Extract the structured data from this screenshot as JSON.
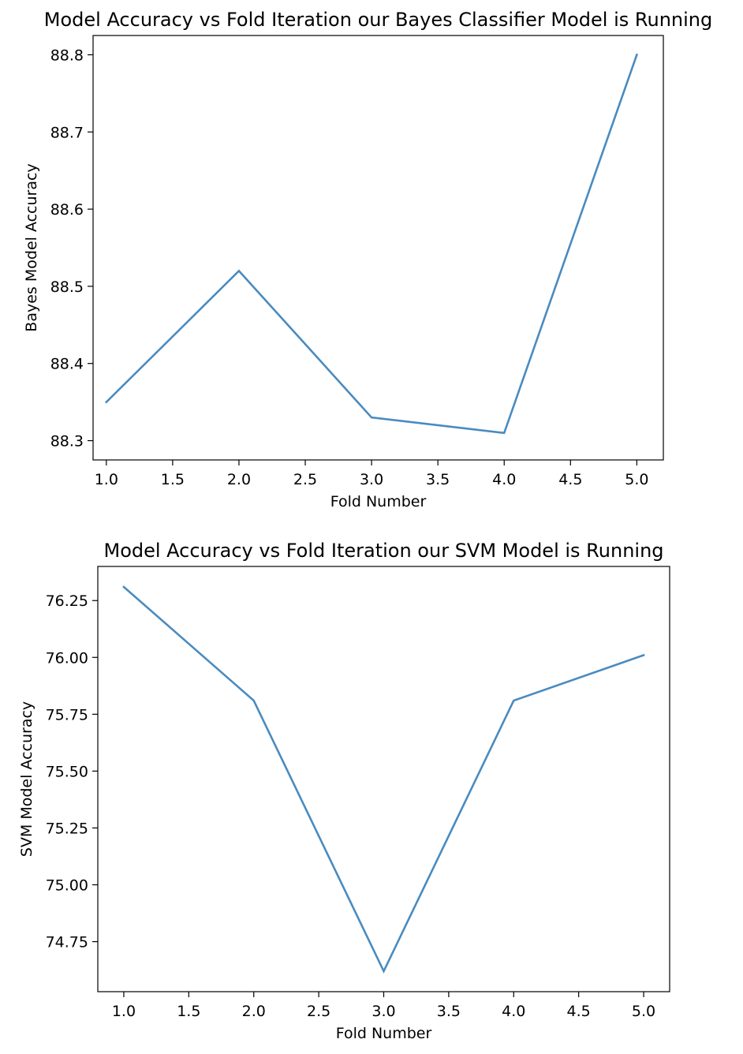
{
  "chart_data": [
    {
      "type": "line",
      "title": "Model Accuracy vs Fold Iteration our Bayes Classifier Model is Running",
      "xlabel": "Fold Number",
      "ylabel": "Bayes Model Accuracy",
      "x": [
        1,
        2,
        3,
        4,
        5
      ],
      "series": [
        {
          "values": [
            88.35,
            88.52,
            88.33,
            88.31,
            88.8
          ]
        }
      ],
      "xlim": [
        0.9,
        5.2
      ],
      "ylim": [
        88.275,
        88.825
      ],
      "x_ticks": [
        "1.0",
        "1.5",
        "2.0",
        "2.5",
        "3.0",
        "3.5",
        "4.0",
        "4.5",
        "5.0"
      ],
      "y_ticks": [
        "88.3",
        "88.4",
        "88.5",
        "88.6",
        "88.7",
        "88.8"
      ],
      "grid": false,
      "line_color": "#4a8bbf"
    },
    {
      "type": "line",
      "title": "Model Accuracy vs Fold Iteration our SVM Model is Running",
      "xlabel": "Fold Number",
      "ylabel": "SVM Model Accuracy",
      "x": [
        1,
        2,
        3,
        4,
        5
      ],
      "series": [
        {
          "values": [
            76.31,
            75.81,
            74.62,
            75.81,
            76.01
          ]
        }
      ],
      "xlim": [
        0.8,
        5.2
      ],
      "ylim": [
        74.53,
        76.4
      ],
      "x_ticks": [
        "1.0",
        "1.5",
        "2.0",
        "2.5",
        "3.0",
        "3.5",
        "4.0",
        "4.5",
        "5.0"
      ],
      "y_ticks": [
        "74.75",
        "75.00",
        "75.25",
        "75.50",
        "75.75",
        "76.00",
        "76.25"
      ],
      "grid": false,
      "line_color": "#4a8bbf"
    }
  ]
}
